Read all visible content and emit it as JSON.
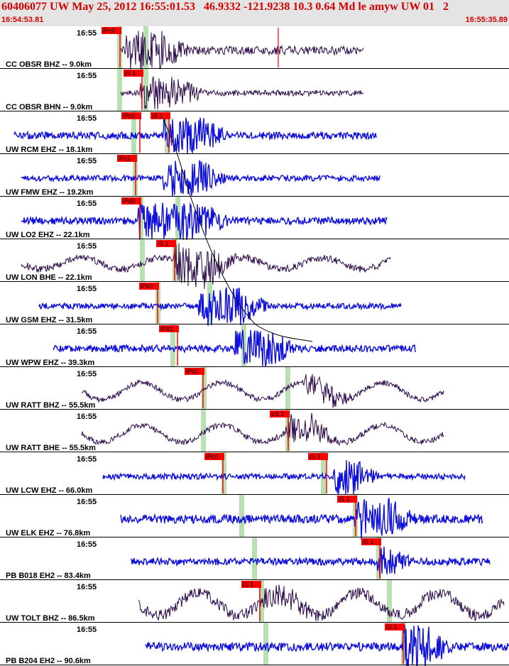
{
  "header": {
    "title": "60406077 UW May 25, 2012 16:55:01.53   46.9332 -121.9238 10.3 0.64 Md le amyw UW 01   2",
    "start_time": "16:54:53.81",
    "end_time": "16:55:35.89"
  },
  "colors": {
    "header_bg": "#e4e4e4",
    "header_text": "#d40000",
    "trace_blue": "#1010e0",
    "trace_purple": "#2c0a4a",
    "pick_red": "#ff0000",
    "predict_green": "#b8e0b0",
    "separator": "#000000",
    "travel_time_curve": "#000000"
  },
  "traces": [
    {
      "label": "CC OBSR BHZ -- 9.0km",
      "time_mark": "16:55",
      "color": "purple",
      "picks": [
        {
          "label": "iPc0",
          "t": 0.0
        }
      ]
    },
    {
      "label": "CC OBSR BHN -- 9.0km",
      "time_mark": "16:55",
      "color": "purple",
      "picks": [
        {
          "label": "iS 1",
          "t": 0.6
        }
      ]
    },
    {
      "label": "UW RCM EHZ -- 18.1km",
      "time_mark": "16:55",
      "color": "blue",
      "picks": [
        {
          "label": "iPc0",
          "t": 0.0
        },
        {
          "label": "iS 1",
          "t": 0.0
        }
      ]
    },
    {
      "label": "UW FMW EHZ -- 19.2km",
      "time_mark": "16:55",
      "color": "blue",
      "picks": [
        {
          "label": "iPc1",
          "t": 0.0
        }
      ]
    },
    {
      "label": "UW LO2 EHZ -- 22.1km",
      "time_mark": "16:55",
      "color": "blue",
      "picks": [
        {
          "label": "iPd0",
          "t": 0.0
        }
      ]
    },
    {
      "label": "UW LON BHE -- 22.1km",
      "time_mark": "16:55",
      "color": "purple",
      "picks": [
        {
          "label": "iS 1",
          "t": 0.0
        }
      ]
    },
    {
      "label": "UW GSM EHZ -- 31.5km",
      "time_mark": "16:55",
      "color": "blue",
      "picks": [
        {
          "label": "iPc0",
          "t": 0.0
        }
      ]
    },
    {
      "label": "UW WPW EHZ -- 39.3km",
      "time_mark": "16:55",
      "color": "blue",
      "picks": [
        {
          "label": "iPd1",
          "t": 0.0
        }
      ]
    },
    {
      "label": "UW RATT BHZ -- 55.5km",
      "time_mark": "16:55",
      "color": "purple",
      "picks": [
        {
          "label": "iPc0",
          "t": 0.0
        }
      ]
    },
    {
      "label": "UW RATT BHE -- 55.5km",
      "time_mark": "16:55",
      "color": "purple",
      "picks": [
        {
          "label": "eS 2",
          "t": 0.0
        }
      ]
    },
    {
      "label": "UW LCW EHZ -- 66.0km",
      "time_mark": "16:55",
      "color": "blue",
      "picks": [
        {
          "label": "iPc0",
          "t": 0.0
        },
        {
          "label": "iS 1",
          "t": 0.0
        }
      ]
    },
    {
      "label": "UW ELK EHZ -- 76.8km",
      "time_mark": "16:55",
      "color": "blue",
      "picks": [
        {
          "label": "iS 1",
          "t": 0.0
        }
      ]
    },
    {
      "label": "PB B018 EH2 -- 83.4km",
      "time_mark": "16:55",
      "color": "blue",
      "picks": [
        {
          "label": "iS 1",
          "t": 0.0
        }
      ]
    },
    {
      "label": "UW TOLT BHZ -- 86.5km",
      "time_mark": "16:55",
      "color": "purple",
      "picks": [
        {
          "label": "iS 1",
          "t": 0.0
        }
      ]
    },
    {
      "label": "PB B204 EH2 -- 90.6km",
      "time_mark": "16:55",
      "color": "blue",
      "picks": [
        {
          "label": "iS 1",
          "t": 0.0
        }
      ]
    }
  ]
}
